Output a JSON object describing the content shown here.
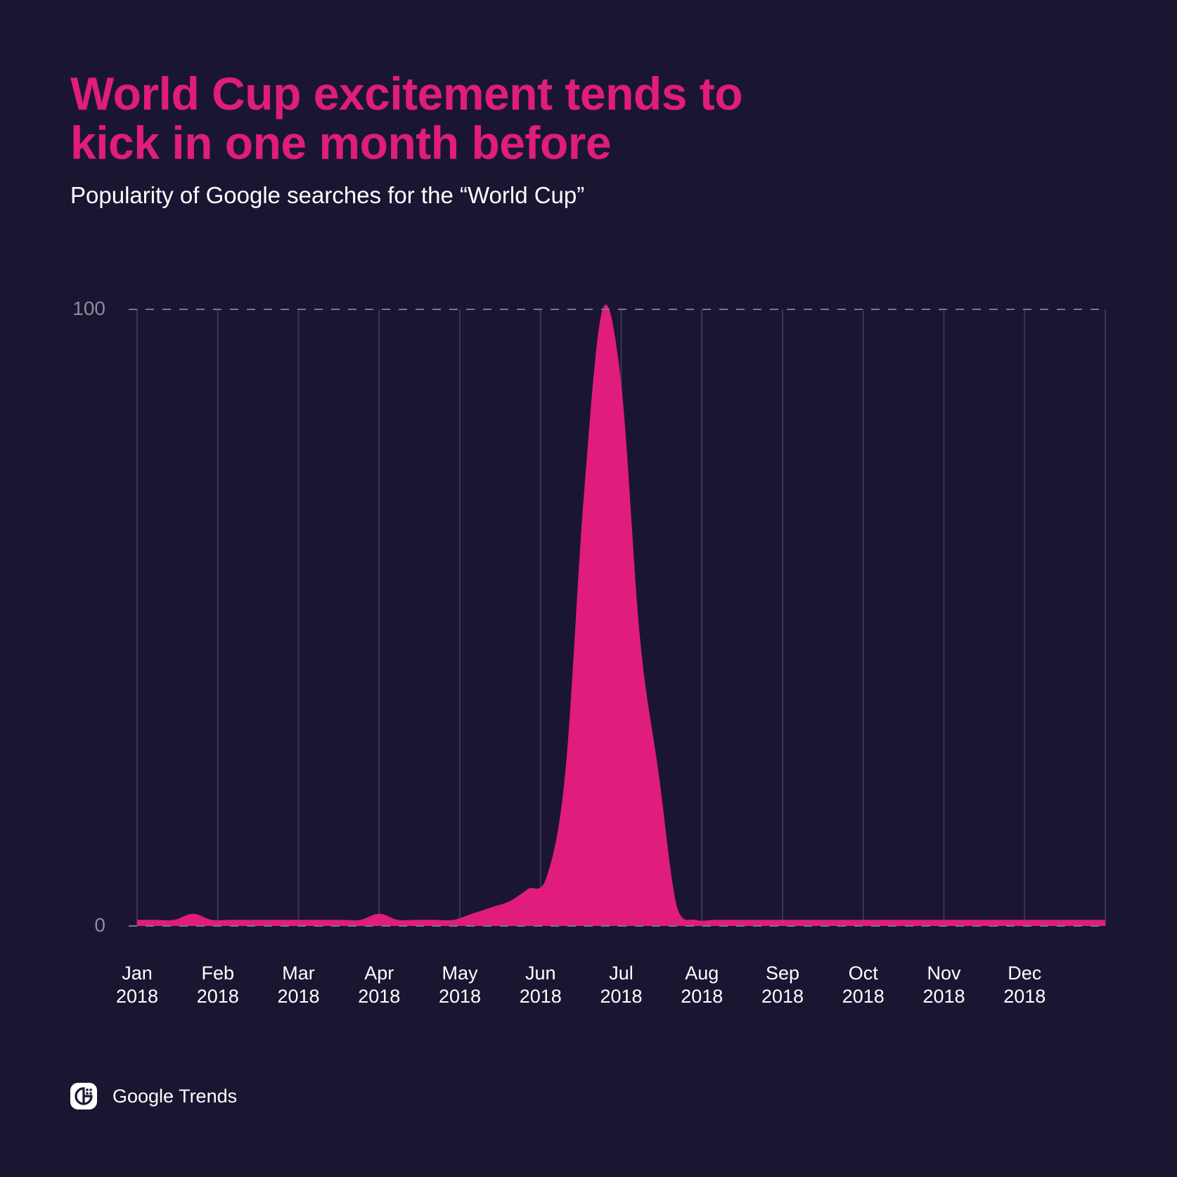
{
  "header": {
    "title": "World Cup excitement tends to kick in one month before",
    "subtitle": "Popularity of Google searches for the “World Cup”"
  },
  "footer": {
    "brand": "Google Trends",
    "logo_icon": "google-trends-logo-icon"
  },
  "colors": {
    "background": "#1a1632",
    "accent": "#e01c7c",
    "grid": "#3a3650",
    "axis_text": "#8f8a9e",
    "text": "#ffffff"
  },
  "chart_data": {
    "type": "area",
    "title": "World Cup excitement tends to kick in one month before",
    "subtitle": "Popularity of Google searches for the “World Cup”",
    "xlabel": "",
    "ylabel": "",
    "ylim": [
      0,
      100
    ],
    "yticks": [
      "0",
      "100"
    ],
    "grid": true,
    "legend": null,
    "categories": [
      "Jan 2018",
      "Feb 2018",
      "Mar 2018",
      "Apr 2018",
      "May 2018",
      "Jun 2018",
      "Jul 2018",
      "Aug 2018",
      "Sep 2018",
      "Oct 2018",
      "Nov 2018",
      "Dec 2018"
    ],
    "x_ticks": [
      {
        "month": "Jan",
        "year": "2018"
      },
      {
        "month": "Feb",
        "year": "2018"
      },
      {
        "month": "Mar",
        "year": "2018"
      },
      {
        "month": "Apr",
        "year": "2018"
      },
      {
        "month": "May",
        "year": "2018"
      },
      {
        "month": "Jun",
        "year": "2018"
      },
      {
        "month": "Jul",
        "year": "2018"
      },
      {
        "month": "Aug",
        "year": "2018"
      },
      {
        "month": "Sep",
        "year": "2018"
      },
      {
        "month": "Oct",
        "year": "2018"
      },
      {
        "month": "Nov",
        "year": "2018"
      },
      {
        "month": "Dec",
        "year": "2018"
      }
    ],
    "series": [
      {
        "name": "World Cup",
        "x_unit": "week",
        "values": [
          1,
          1,
          1,
          2,
          1,
          1,
          1,
          1,
          1,
          1,
          1,
          1,
          1,
          2,
          1,
          1,
          1,
          1,
          2,
          3,
          4,
          6,
          8,
          25,
          70,
          100,
          88,
          47,
          25,
          3,
          1,
          1,
          1,
          1,
          1,
          1,
          1,
          1,
          1,
          1,
          1,
          1,
          1,
          1,
          1,
          1,
          1,
          1,
          1,
          1,
          1,
          1,
          1
        ]
      }
    ]
  }
}
